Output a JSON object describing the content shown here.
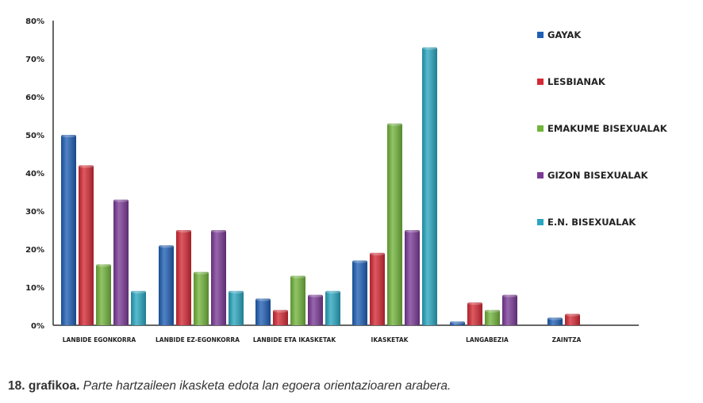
{
  "chart_data": {
    "type": "bar",
    "categories": [
      "LANBIDE EGONKORRA",
      "LANBIDE EZ-EGONKORRA",
      "LANBIDE ETA IKASKETAK",
      "IKASKETAK",
      "LANGABEZIA",
      "ZAINTZA"
    ],
    "series": [
      {
        "name": "GAYAK",
        "color": "#1f5fb5",
        "values": [
          50,
          21,
          7,
          17,
          1,
          2
        ]
      },
      {
        "name": "LESBIANAK",
        "color": "#d42a35",
        "values": [
          42,
          25,
          4,
          19,
          6,
          3
        ]
      },
      {
        "name": "EMAKUME BISEXUALAK",
        "color": "#72b43c",
        "values": [
          16,
          14,
          13,
          53,
          4,
          null
        ]
      },
      {
        "name": "GIZON BISEXUALAK",
        "color": "#7a3a96",
        "values": [
          33,
          25,
          8,
          25,
          8,
          null
        ]
      },
      {
        "name": "E.N. BISEXUALAK",
        "color": "#2aa6c0",
        "values": [
          9,
          9,
          9,
          73,
          null,
          null
        ]
      }
    ],
    "yticks": [
      "0%",
      "10%",
      "20%",
      "30%",
      "40%",
      "50%",
      "60%",
      "70%",
      "80%"
    ],
    "ylim": [
      0,
      80
    ],
    "grid": false,
    "legend": "right"
  },
  "caption": {
    "label": "18. grafikoa.",
    "text": "Parte hartzaileen ikasketa edota lan egoera orientazioaren arabera."
  }
}
